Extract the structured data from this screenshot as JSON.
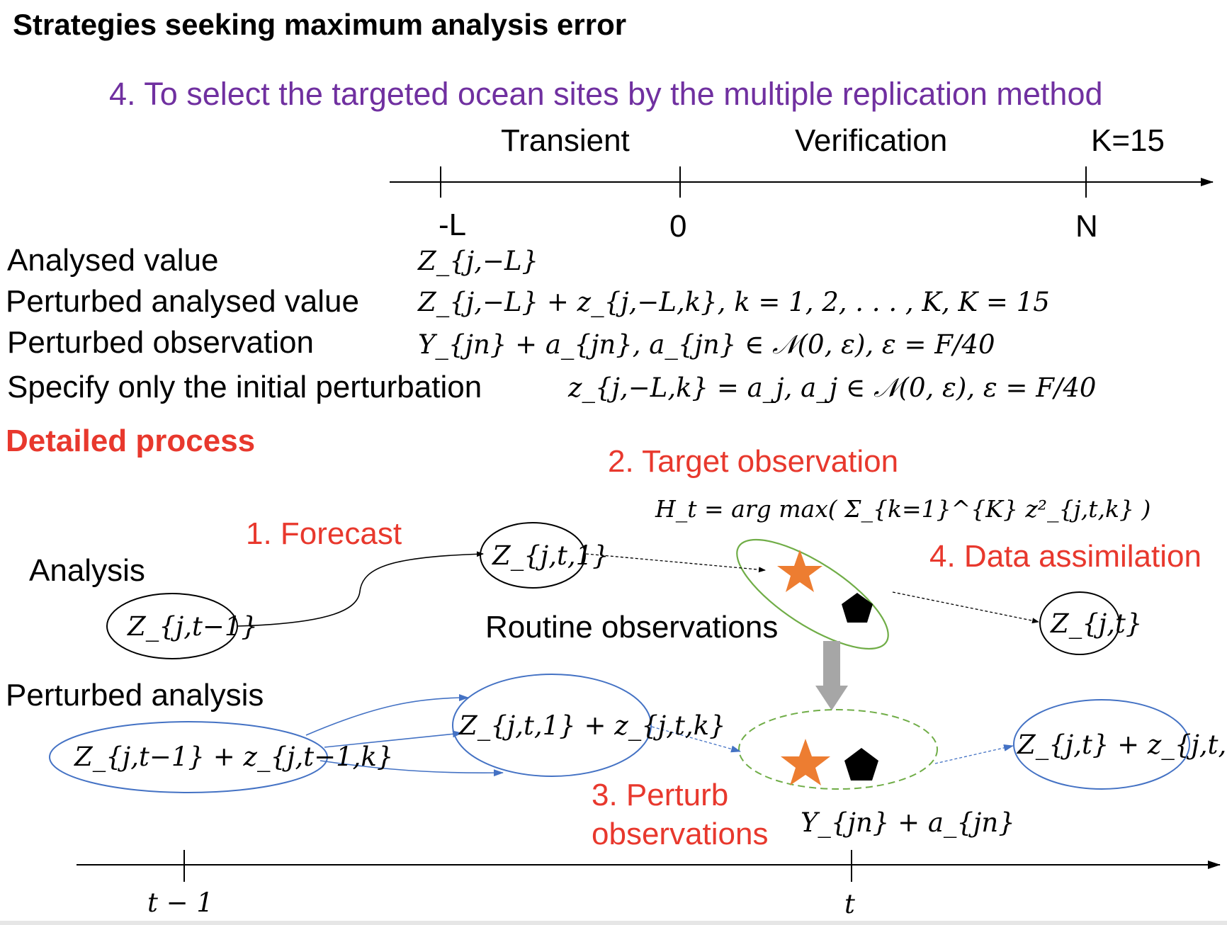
{
  "title": "Strategies seeking maximum analysis error",
  "subtitle": "4. To select the targeted ocean sites by the multiple replication method",
  "timeline_top": {
    "phase_transient": "Transient",
    "phase_verification": "Verification",
    "k_label": "K=15",
    "tick_minus_l": "-L",
    "tick_zero": "0",
    "tick_n": "N"
  },
  "definitions": [
    {
      "label": "Analysed value",
      "formula": "Z_{j,−L}"
    },
    {
      "label": "Perturbed analysed value",
      "formula": "Z_{j,−L} + z_{j,−L,k},  k = 1, 2,  . . . ,  K,  K = 15"
    },
    {
      "label": "Perturbed observation",
      "formula": "Y_{jn} + a_{jn},  a_{jn} ∈ 𝒩(0, ε),  ε = F/40"
    },
    {
      "label": "Specify only the initial perturbation",
      "formula": "z_{j,−L,k} = a_j,  a_j ∈ 𝒩(0, ε),  ε = F/40"
    }
  ],
  "detailed_heading": "Detailed process",
  "steps": {
    "forecast": "1. Forecast",
    "target": "2. Target observation",
    "target_formula": "H_t = arg max( Σ_{k=1}^{K} z²_{j,t,k} )",
    "perturb_line1": "3. Perturb",
    "perturb_line2": "observations",
    "assimilation": "4. Data assimilation"
  },
  "rows": {
    "analysis": "Analysis",
    "perturbed_analysis": "Perturbed analysis",
    "routine_obs": "Routine observations"
  },
  "nodes": {
    "z_prev": "Z_{j,t−1}",
    "z_fcst": "Z_{j,t,1}",
    "z_t": "Z_{j,t}",
    "zp_prev": "Z_{j,t−1} + z_{j,t−1,k}",
    "zp_fcst": "Z_{j,t,1} + z_{j,t,k}",
    "zp_t": "Z_{j,t} + z_{j,t,k}",
    "obs_label": "Y_{jn} + a_{jn}"
  },
  "timeline_bottom": {
    "tick_t_minus_1": "t − 1",
    "tick_t": "t"
  },
  "colors": {
    "purple": "#7030a0",
    "red": "#e8382d",
    "blue": "#4472c4",
    "green": "#70ad47",
    "orange": "#ed7d31",
    "gray_arrow": "#a6a6a6"
  },
  "icons": {
    "star": "star-icon",
    "pentagon": "pentagon-icon",
    "down_arrow": "down-arrow-icon"
  }
}
